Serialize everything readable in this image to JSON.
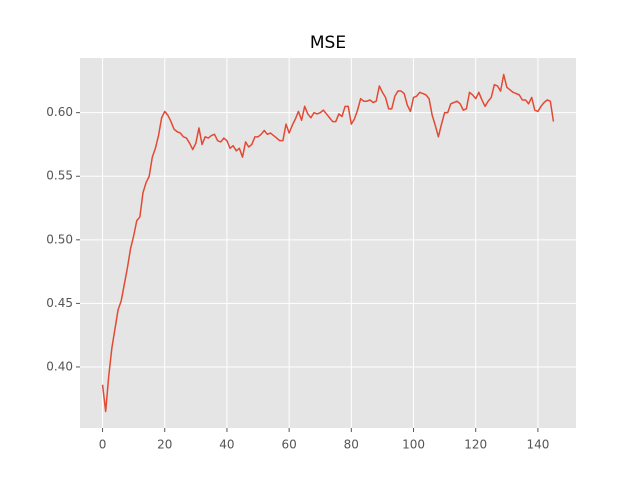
{
  "chart_data": {
    "type": "line",
    "title": "MSE",
    "color": "#e24a33",
    "grid": true,
    "x": [
      0,
      1,
      2,
      3,
      4,
      5,
      6,
      7,
      8,
      9,
      10,
      11,
      12,
      13,
      14,
      15,
      16,
      17,
      18,
      19,
      20,
      21,
      22,
      23,
      24,
      25,
      26,
      27,
      28,
      29,
      30,
      31,
      32,
      33,
      34,
      35,
      36,
      37,
      38,
      39,
      40,
      41,
      42,
      43,
      44,
      45,
      46,
      47,
      48,
      49,
      50,
      51,
      52,
      53,
      54,
      55,
      56,
      57,
      58,
      59,
      60,
      61,
      62,
      63,
      64,
      65,
      66,
      67,
      68,
      69,
      70,
      71,
      72,
      73,
      74,
      75,
      76,
      77,
      78,
      79,
      80,
      81,
      82,
      83,
      84,
      85,
      86,
      87,
      88,
      89,
      90,
      91,
      92,
      93,
      94,
      95,
      96,
      97,
      98,
      99,
      100,
      101,
      102,
      103,
      104,
      105,
      106,
      107,
      108,
      109,
      110,
      111,
      112,
      113,
      114,
      115,
      116,
      117,
      118,
      119,
      120,
      121,
      122,
      123,
      124,
      125,
      126,
      127,
      128,
      129,
      130,
      131,
      132,
      133,
      134,
      135,
      136,
      137,
      138,
      139,
      140,
      141,
      142,
      143,
      144,
      145
    ],
    "values": [
      0.386,
      0.365,
      0.393,
      0.415,
      0.43,
      0.445,
      0.452,
      0.465,
      0.478,
      0.493,
      0.503,
      0.515,
      0.518,
      0.537,
      0.545,
      0.55,
      0.565,
      0.572,
      0.582,
      0.596,
      0.601,
      0.598,
      0.593,
      0.587,
      0.585,
      0.584,
      0.581,
      0.58,
      0.576,
      0.571,
      0.576,
      0.588,
      0.575,
      0.581,
      0.58,
      0.582,
      0.583,
      0.578,
      0.577,
      0.58,
      0.578,
      0.572,
      0.574,
      0.57,
      0.572,
      0.565,
      0.577,
      0.573,
      0.575,
      0.581,
      0.581,
      0.583,
      0.586,
      0.583,
      0.584,
      0.582,
      0.58,
      0.578,
      0.578,
      0.591,
      0.584,
      0.59,
      0.595,
      0.601,
      0.594,
      0.605,
      0.599,
      0.596,
      0.6,
      0.599,
      0.6,
      0.602,
      0.599,
      0.596,
      0.593,
      0.593,
      0.599,
      0.597,
      0.605,
      0.605,
      0.591,
      0.595,
      0.602,
      0.611,
      0.609,
      0.609,
      0.61,
      0.608,
      0.609,
      0.621,
      0.616,
      0.612,
      0.603,
      0.603,
      0.613,
      0.617,
      0.617,
      0.615,
      0.606,
      0.601,
      0.612,
      0.613,
      0.616,
      0.615,
      0.614,
      0.611,
      0.598,
      0.59,
      0.581,
      0.591,
      0.6,
      0.6,
      0.607,
      0.608,
      0.609,
      0.607,
      0.602,
      0.603,
      0.616,
      0.614,
      0.611,
      0.616,
      0.61,
      0.605,
      0.609,
      0.612,
      0.622,
      0.621,
      0.617,
      0.63,
      0.62,
      0.618,
      0.616,
      0.615,
      0.614,
      0.61,
      0.61,
      0.607,
      0.612,
      0.602,
      0.601,
      0.605,
      0.608,
      0.61,
      0.609,
      0.593
    ],
    "xlim": [
      -7.25,
      152.25
    ],
    "xticks": [
      0,
      20,
      40,
      60,
      80,
      100,
      120,
      140
    ],
    "ylim": [
      0.352,
      0.643
    ],
    "yticks": [
      {
        "value": 0.4,
        "label": "0.40"
      },
      0.45,
      {
        "value": 0.5,
        "label": "0.50"
      },
      0.55,
      {
        "value": 0.6,
        "label": "0.60"
      }
    ]
  }
}
